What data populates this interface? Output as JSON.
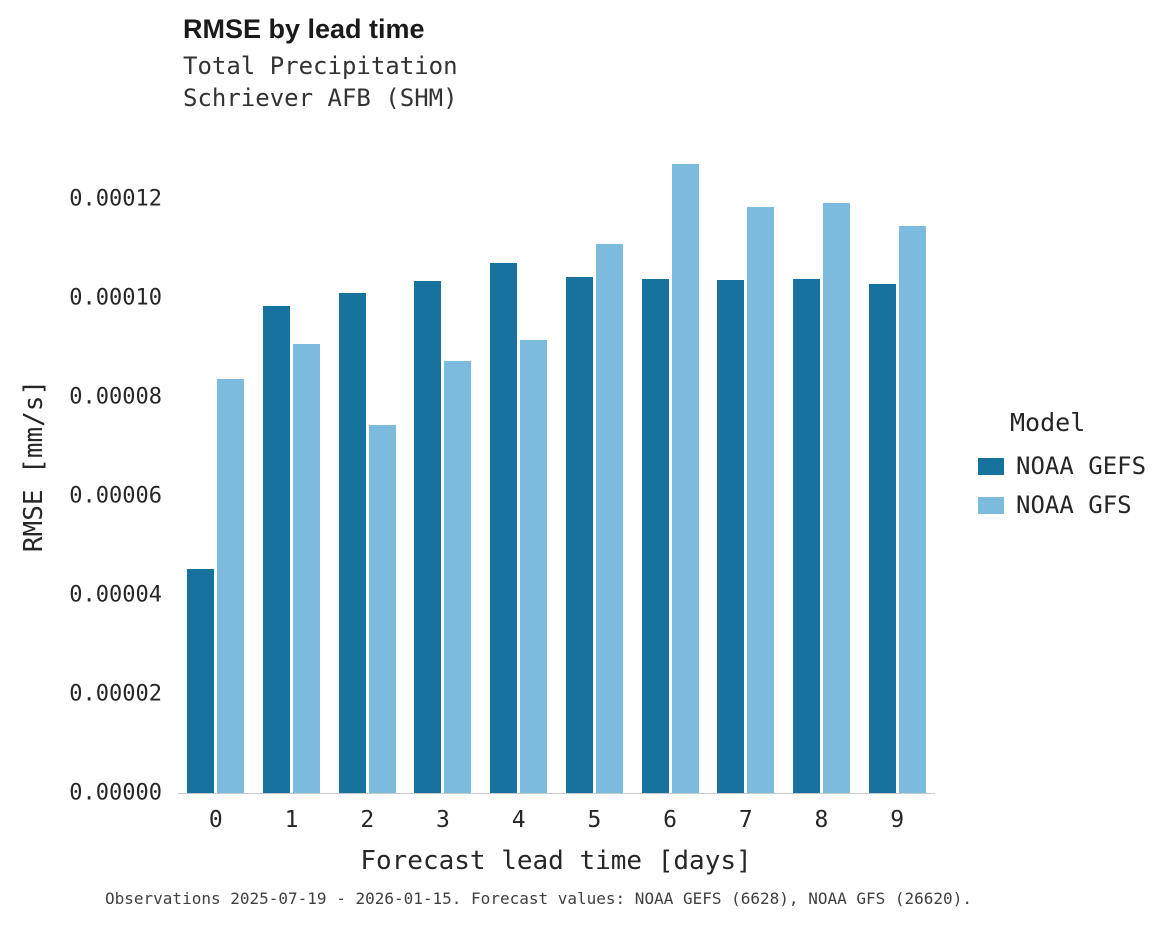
{
  "title": "RMSE by lead time",
  "subtitle_line1": "Total Precipitation",
  "subtitle_line2": "Schriever AFB (SHM)",
  "caption": "Observations 2025-07-19 - 2026-01-15. Forecast values: NOAA GEFS (6628), NOAA GFS (26620).",
  "legend": {
    "title": "Model",
    "entries": [
      {
        "label": "NOAA GEFS",
        "color": "#17739e"
      },
      {
        "label": "NOAA GFS",
        "color": "#7cbade"
      }
    ]
  },
  "chart_data": {
    "type": "bar",
    "title": "RMSE by lead time",
    "subtitle": "Total Precipitation — Schriever AFB (SHM)",
    "xlabel": "Forecast lead time [days]",
    "ylabel": "RMSE [mm/s]",
    "categories": [
      "0",
      "1",
      "2",
      "3",
      "4",
      "5",
      "6",
      "7",
      "8",
      "9"
    ],
    "series": [
      {
        "name": "NOAA GEFS",
        "color": "#17739e",
        "values": [
          4.52e-05,
          9.85e-05,
          0.000101,
          0.0001034,
          0.0001072,
          0.0001043,
          0.0001039,
          0.0001037,
          0.0001039,
          0.0001028
        ]
      },
      {
        "name": "NOAA GFS",
        "color": "#7cbade",
        "values": [
          8.36e-05,
          9.08e-05,
          7.43e-05,
          8.73e-05,
          9.16e-05,
          0.000111,
          0.0001272,
          0.0001185,
          0.0001192,
          0.0001146
        ]
      }
    ],
    "ylim": [
      0,
      0.000132
    ],
    "ytick_step": 2e-05,
    "ytick_decimals": 5,
    "grid": false,
    "legend_position": "right",
    "legend_title": "Model"
  }
}
